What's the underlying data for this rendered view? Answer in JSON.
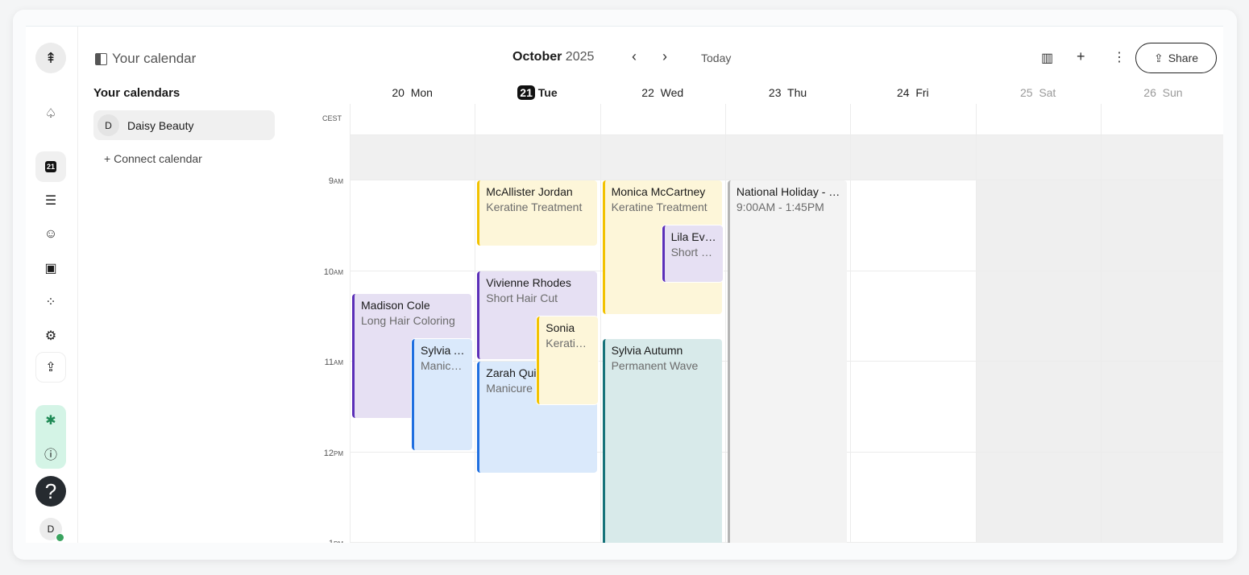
{
  "rail": {
    "items": [
      "logo-tree",
      "tree-outline",
      "calendar-21",
      "list",
      "smiley",
      "cash",
      "apps-add",
      "gear",
      "upload",
      "pine-green",
      "info",
      "help",
      "avatar"
    ],
    "today_badge": "21",
    "avatar_initial": "D",
    "status_color": "#3aa35f"
  },
  "panel": {
    "title": "Your calendar",
    "section": "Your calendars",
    "calendars": [
      {
        "initial": "D",
        "name": "Daisy Beauty"
      }
    ],
    "connect": "Connect calendar"
  },
  "header": {
    "month": "October",
    "year": "2025",
    "today": "Today",
    "share": "Share",
    "timezone": "CEST"
  },
  "days": [
    {
      "num": "20",
      "name": "Mon"
    },
    {
      "num": "21",
      "name": "Tue",
      "today": true
    },
    {
      "num": "22",
      "name": "Wed"
    },
    {
      "num": "23",
      "name": "Thu"
    },
    {
      "num": "24",
      "name": "Fri"
    },
    {
      "num": "25",
      "name": "Sat",
      "weekend": true
    },
    {
      "num": "26",
      "name": "Sun",
      "weekend": true
    }
  ],
  "hours": [
    {
      "h": "9",
      "p": "AM"
    },
    {
      "h": "10",
      "p": "AM"
    },
    {
      "h": "11",
      "p": "AM"
    },
    {
      "h": "12",
      "p": "PM"
    },
    {
      "h": "1",
      "p": "PM"
    }
  ],
  "events": [
    {
      "day": 0,
      "title": "Madison Cole",
      "sub": "Long Hair Coloring",
      "start": 10.25,
      "end": 11.65,
      "lane": 0,
      "color": "#5b2fb8",
      "bg": "#e6e0f3"
    },
    {
      "day": 0,
      "title": "Sylvia Autumn",
      "sub": "Manicure",
      "start": 10.75,
      "end": 12.0,
      "lane": 1,
      "color": "#1f6fe0",
      "bg": "#dae9fb"
    },
    {
      "day": 1,
      "title": "McAllister Jordan",
      "sub": "Keratine Treatment",
      "start": 9.0,
      "end": 9.75,
      "lane": 0,
      "color": "#f2c200",
      "bg": "#fdf6d9"
    },
    {
      "day": 1,
      "title": "Vivienne Rhodes",
      "sub": "Short Hair Cut",
      "start": 10.0,
      "end": 11.0,
      "lane": 0,
      "color": "#5b2fb8",
      "bg": "#e6e0f3"
    },
    {
      "day": 1,
      "title": "Zarah Quinn",
      "sub": "Manicure",
      "start": 11.0,
      "end": 12.25,
      "lane": 0,
      "color": "#1f6fe0",
      "bg": "#dae9fb"
    },
    {
      "day": 1,
      "title": "Sonia",
      "sub": "Keratine Treatment",
      "start": 10.5,
      "end": 11.5,
      "lane": 1,
      "color": "#f2c200",
      "bg": "#fdf6d9"
    },
    {
      "day": 2,
      "title": "Monica McCartney",
      "sub": "Keratine Treatment",
      "start": 9.0,
      "end": 10.5,
      "lane": 0,
      "color": "#f2c200",
      "bg": "#fdf6d9"
    },
    {
      "day": 2,
      "title": "Lila Evans",
      "sub": "Short Hair Cut",
      "start": 9.5,
      "end": 10.15,
      "lane": 1,
      "color": "#5b2fb8",
      "bg": "#e6e0f3"
    },
    {
      "day": 2,
      "title": "Sylvia Autumn",
      "sub": "Permanent Wave",
      "start": 10.75,
      "end": 13.5,
      "lane": 0,
      "color": "#17737a",
      "bg": "#d8eaea"
    },
    {
      "day": 3,
      "title": "National Holiday - Day",
      "sub": "9:00AM - 1:45PM",
      "start": 9.0,
      "end": 13.75,
      "lane": 0,
      "color": "#b5b5b5",
      "bg": "#f3f3f3"
    }
  ]
}
